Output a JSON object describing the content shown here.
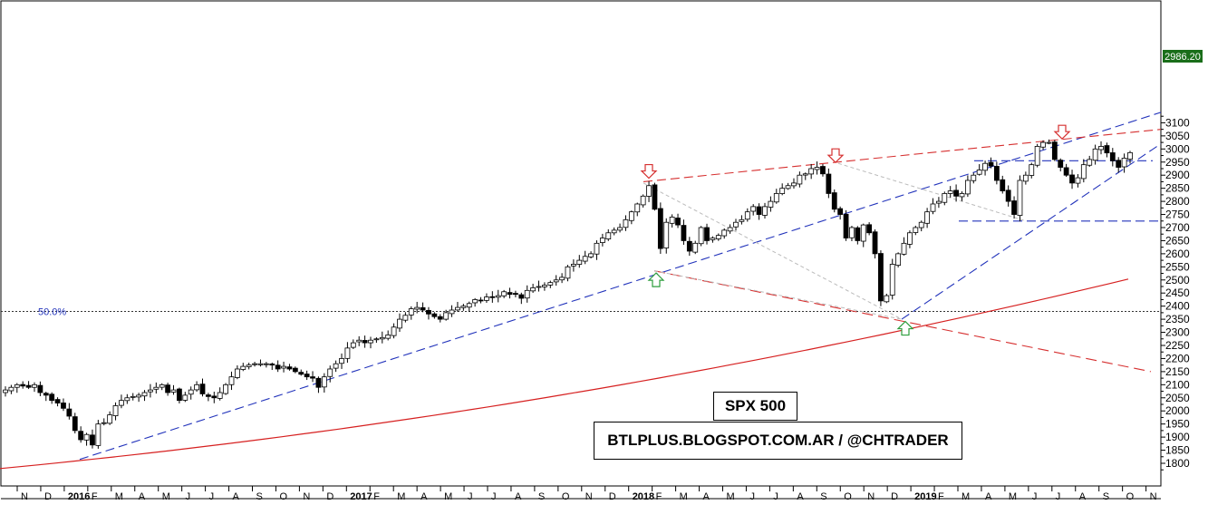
{
  "chart_data": {
    "type": "candlestick",
    "title": "SPX 500",
    "subtitle": "BTLPLUS.BLOGSPOT.COM.AR / @CHTRADER",
    "ylim": [
      1760,
      3150
    ],
    "y_ticks": [
      1800,
      1850,
      1900,
      1950,
      2000,
      2050,
      2100,
      2150,
      2200,
      2250,
      2300,
      2350,
      2400,
      2450,
      2500,
      2550,
      2600,
      2650,
      2700,
      2750,
      2800,
      2850,
      2900,
      2950,
      3000,
      3050,
      3100
    ],
    "x_tick_labels": [
      "N",
      "D",
      "2016",
      "F",
      "M",
      "A",
      "M",
      "J",
      "J",
      "A",
      "S",
      "O",
      "N",
      "D",
      "2017",
      "F",
      "M",
      "A",
      "M",
      "J",
      "J",
      "A",
      "S",
      "O",
      "N",
      "D",
      "2018",
      "F",
      "M",
      "A",
      "M",
      "J",
      "J",
      "A",
      "S",
      "O",
      "N",
      "D",
      "2019",
      "F",
      "M",
      "A",
      "M",
      "J",
      "J",
      "A",
      "S",
      "O",
      "N"
    ],
    "year_labels": [
      "2016",
      "2017",
      "2018",
      "2019"
    ],
    "last_price": "2986.20",
    "fib_level": {
      "label": "50.0%",
      "value": 2380
    },
    "weekly_close": [
      2080,
      2090,
      2100,
      2095,
      2090,
      2100,
      2070,
      2060,
      2040,
      2030,
      2010,
      1980,
      1925,
      1890,
      1910,
      1870,
      1950,
      1955,
      1985,
      2020,
      2040,
      2050,
      2055,
      2060,
      2070,
      2080,
      2090,
      2100,
      2070,
      2080,
      2040,
      2060,
      2080,
      2100,
      2065,
      2055,
      2050,
      2070,
      2100,
      2130,
      2160,
      2170,
      2175,
      2180,
      2180,
      2180,
      2175,
      2160,
      2170,
      2160,
      2150,
      2140,
      2130,
      2125,
      2090,
      2130,
      2160,
      2180,
      2200,
      2240,
      2260,
      2270,
      2260,
      2270,
      2275,
      2280,
      2290,
      2320,
      2350,
      2365,
      2390,
      2395,
      2385,
      2370,
      2360,
      2350,
      2375,
      2385,
      2395,
      2400,
      2410,
      2425,
      2420,
      2435,
      2435,
      2440,
      2455,
      2445,
      2445,
      2430,
      2460,
      2470,
      2475,
      2480,
      2490,
      2500,
      2510,
      2550,
      2560,
      2575,
      2590,
      2600,
      2640,
      2660,
      2680,
      2690,
      2700,
      2730,
      2760,
      2790,
      2820,
      2860,
      2770,
      2620,
      2720,
      2740,
      2710,
      2650,
      2610,
      2640,
      2700,
      2650,
      2660,
      2670,
      2690,
      2700,
      2720,
      2730,
      2760,
      2780,
      2750,
      2780,
      2800,
      2830,
      2850,
      2860,
      2870,
      2900,
      2905,
      2925,
      2930,
      2905,
      2830,
      2770,
      2750,
      2660,
      2700,
      2650,
      2710,
      2680,
      2600,
      2420,
      2440,
      2560,
      2600,
      2640,
      2680,
      2700,
      2720,
      2760,
      2790,
      2800,
      2830,
      2840,
      2820,
      2830,
      2880,
      2900,
      2920,
      2945,
      2935,
      2880,
      2840,
      2800,
      2750,
      2880,
      2900,
      2940,
      3010,
      3025,
      3025,
      2960,
      2930,
      2900,
      2870,
      2890,
      2940,
      2960,
      3000,
      3010,
      2985,
      2955,
      2930,
      2965,
      2986
    ],
    "moving_average_200w": {
      "start": 1780,
      "end": 2520
    },
    "trendlines": [
      {
        "name": "rising-support-2016",
        "color": "#2233bb",
        "style": "dashed"
      },
      {
        "name": "rising-support-2018",
        "color": "#2233bb",
        "style": "dashed"
      },
      {
        "name": "upper-resistance",
        "color": "#d63030",
        "style": "dashed"
      },
      {
        "name": "falling-from-2018-low",
        "color": "#d63030",
        "style": "dashed"
      },
      {
        "name": "horizontal-2955",
        "color": "#2233bb",
        "style": "dashed"
      },
      {
        "name": "horizontal-2725",
        "color": "#2233bb",
        "style": "dashed"
      }
    ],
    "markers": [
      {
        "type": "down",
        "color": "#d63030",
        "value": 2885
      },
      {
        "type": "down",
        "color": "#d63030",
        "value": 2945
      },
      {
        "type": "down",
        "color": "#d63030",
        "value": 3035
      },
      {
        "type": "up",
        "color": "#2e9e3e",
        "value": 2530
      },
      {
        "type": "up",
        "color": "#2e9e3e",
        "value": 2345
      }
    ],
    "colors": {
      "up": "#ffffff",
      "down": "#000000",
      "ma": "#d62020",
      "support": "#2233bb",
      "resistance": "#d63030",
      "last_price_bg": "#1a6e1a",
      "last_price_fg": "#ffffff"
    }
  }
}
